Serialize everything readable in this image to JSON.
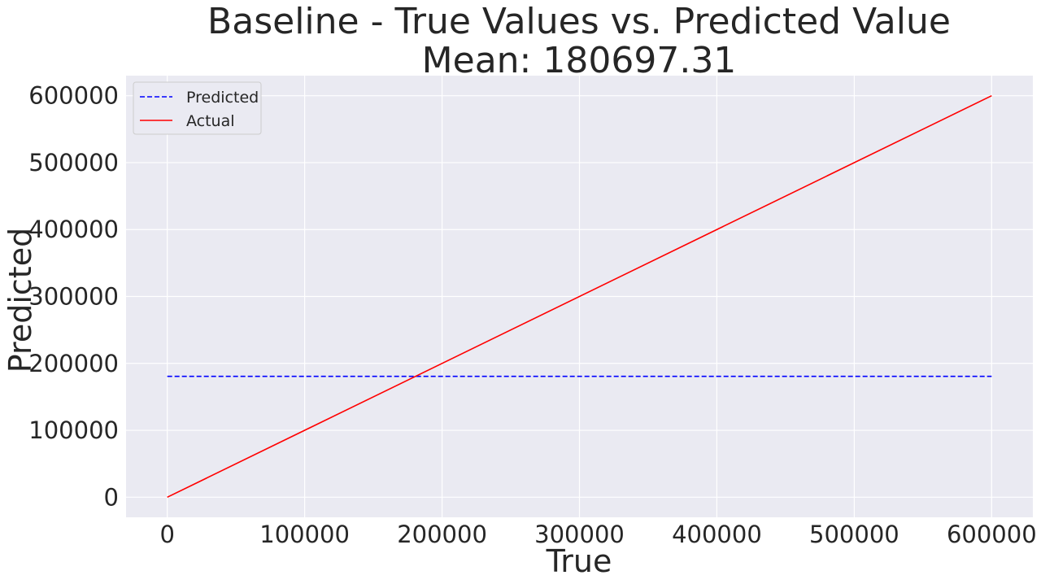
{
  "chart_data": {
    "type": "line",
    "title": "Baseline - True Values vs. Predicted Value",
    "subtitle": "Mean:  180697.31",
    "xlabel": "True",
    "ylabel": "Predicted",
    "xlim": [
      -30000,
      630000
    ],
    "ylim": [
      -30000,
      630000
    ],
    "x_ticks": [
      0,
      100000,
      200000,
      300000,
      400000,
      500000,
      600000
    ],
    "x_tick_labels": [
      "0",
      "100000",
      "200000",
      "300000",
      "400000",
      "500000",
      "600000"
    ],
    "y_ticks": [
      0,
      100000,
      200000,
      300000,
      400000,
      500000,
      600000
    ],
    "y_tick_labels": [
      "0",
      "100000",
      "200000",
      "300000",
      "400000",
      "500000",
      "600000"
    ],
    "grid": true,
    "background_color": "#eaeaf2",
    "grid_color": "#ffffff",
    "legend": {
      "placement": "top-left"
    },
    "series": [
      {
        "name": "Predicted",
        "style": "dashed",
        "color": "#0000ff",
        "x": [
          0,
          600000
        ],
        "y": [
          180697.31,
          180697.31
        ]
      },
      {
        "name": "Actual",
        "style": "solid",
        "color": "#ff0000",
        "x": [
          0,
          600000
        ],
        "y": [
          0,
          600000
        ]
      }
    ]
  }
}
